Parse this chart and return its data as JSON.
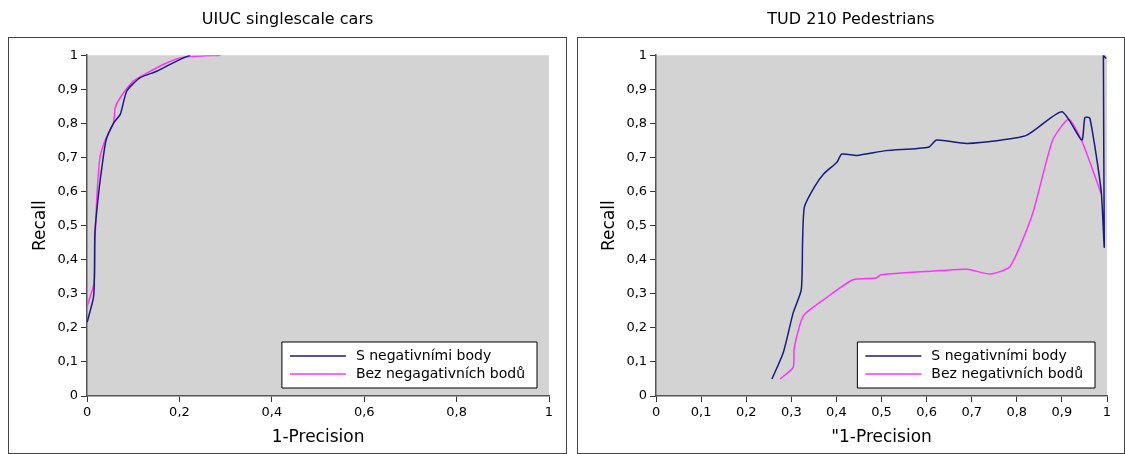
{
  "chart_data": [
    {
      "type": "line",
      "title": "UIUC singlescale cars",
      "xlabel": "1-Precision",
      "ylabel": "Recall",
      "xlim": [
        0,
        1
      ],
      "ylim": [
        0,
        1
      ],
      "xticks": [
        {
          "value": 0,
          "label": "0"
        },
        {
          "value": 0.2,
          "label": "0,2"
        },
        {
          "value": 0.4,
          "label": "0,4"
        },
        {
          "value": 0.6,
          "label": "0,6"
        },
        {
          "value": 0.8,
          "label": "0,8"
        },
        {
          "value": 1,
          "label": "1"
        }
      ],
      "yticks": [
        {
          "value": 0,
          "label": "0"
        },
        {
          "value": 0.1,
          "label": "0,1"
        },
        {
          "value": 0.2,
          "label": "0,2"
        },
        {
          "value": 0.3,
          "label": "0,3"
        },
        {
          "value": 0.4,
          "label": "0,4"
        },
        {
          "value": 0.5,
          "label": "0,5"
        },
        {
          "value": 0.6,
          "label": "0,6"
        },
        {
          "value": 0.7,
          "label": "0,7"
        },
        {
          "value": 0.8,
          "label": "0,8"
        },
        {
          "value": 0.9,
          "label": "0,9"
        },
        {
          "value": 1,
          "label": "1"
        }
      ],
      "grid": false,
      "legend": "bottom right",
      "marker": "none",
      "line_style": "solid",
      "series": [
        {
          "name": "S negativními body",
          "color": "#1a1a80",
          "x": [
            0,
            0.014,
            0.016,
            0.017,
            0.025,
            0.032,
            0.041,
            0.057,
            0.072,
            0.086,
            0.115,
            0.151,
            0.18,
            0.209,
            0.223
          ],
          "values": [
            0.216,
            0.29,
            0.36,
            0.48,
            0.595,
            0.67,
            0.75,
            0.8,
            0.827,
            0.895,
            0.934,
            0.953,
            0.973,
            0.992,
            1.0
          ]
        },
        {
          "name": "Bez negagativních bodů",
          "color": "#ff33ff",
          "x": [
            0,
            0.015,
            0.017,
            0.022,
            0.028,
            0.039,
            0.057,
            0.061,
            0.072,
            0.1,
            0.13,
            0.173,
            0.209,
            0.289
          ],
          "values": [
            0.263,
            0.331,
            0.458,
            0.603,
            0.7,
            0.75,
            0.8,
            0.846,
            0.876,
            0.924,
            0.948,
            0.978,
            0.994,
            1.0
          ]
        }
      ]
    },
    {
      "type": "line",
      "title": "TUD 210 Pedestrians",
      "xlabel": "\"1-Precision",
      "ylabel": "Recall",
      "xlim": [
        0,
        1
      ],
      "ylim": [
        0,
        1
      ],
      "xticks": [
        {
          "value": 0,
          "label": "0"
        },
        {
          "value": 0.1,
          "label": "0,1"
        },
        {
          "value": 0.2,
          "label": "0,2"
        },
        {
          "value": 0.3,
          "label": "0,3"
        },
        {
          "value": 0.4,
          "label": "0,4"
        },
        {
          "value": 0.5,
          "label": "0,5"
        },
        {
          "value": 0.6,
          "label": "0,6"
        },
        {
          "value": 0.7,
          "label": "0,7"
        },
        {
          "value": 0.8,
          "label": "0,8"
        },
        {
          "value": 0.9,
          "label": "0,9"
        },
        {
          "value": 1,
          "label": "1"
        }
      ],
      "yticks": [
        {
          "value": 0,
          "label": "0"
        },
        {
          "value": 0.1,
          "label": "0,1"
        },
        {
          "value": 0.2,
          "label": "0,2"
        },
        {
          "value": 0.3,
          "label": "0,3"
        },
        {
          "value": 0.4,
          "label": "0,4"
        },
        {
          "value": 0.5,
          "label": "0,5"
        },
        {
          "value": 0.6,
          "label": "0,6"
        },
        {
          "value": 0.7,
          "label": "0,7"
        },
        {
          "value": 0.8,
          "label": "0,8"
        },
        {
          "value": 0.9,
          "label": "0,9"
        },
        {
          "value": 1,
          "label": "1"
        }
      ],
      "grid": false,
      "legend": "bottom right",
      "marker": "none",
      "line_style": "solid",
      "series": [
        {
          "name": "S negativními body",
          "color": "#1a1a80",
          "x": [
            0.257,
            0.282,
            0.304,
            0.322,
            0.325,
            0.329,
            0.351,
            0.372,
            0.401,
            0.412,
            0.445,
            0.51,
            0.604,
            0.622,
            0.69,
            0.82,
            0.9,
            0.944,
            0.951,
            0.962,
            0.987,
            0.994,
            0.992,
            0.998
          ],
          "values": [
            0.05,
            0.127,
            0.244,
            0.312,
            0.458,
            0.555,
            0.613,
            0.652,
            0.686,
            0.71,
            0.706,
            0.72,
            0.73,
            0.751,
            0.741,
            0.764,
            0.834,
            0.751,
            0.817,
            0.815,
            0.603,
            0.438,
            1.0,
            0.99
          ]
        },
        {
          "name": "Bez negativních bodů",
          "color": "#ff33ff",
          "x": [
            0.275,
            0.304,
            0.306,
            0.318,
            0.329,
            0.372,
            0.437,
            0.488,
            0.499,
            0.633,
            0.69,
            0.741,
            0.785,
            0.835,
            0.879,
            0.915,
            0.944,
            0.987
          ],
          "values": [
            0.05,
            0.084,
            0.137,
            0.205,
            0.239,
            0.283,
            0.341,
            0.346,
            0.356,
            0.368,
            0.372,
            0.358,
            0.38,
            0.535,
            0.749,
            0.812,
            0.749,
            0.594
          ]
        }
      ]
    }
  ]
}
